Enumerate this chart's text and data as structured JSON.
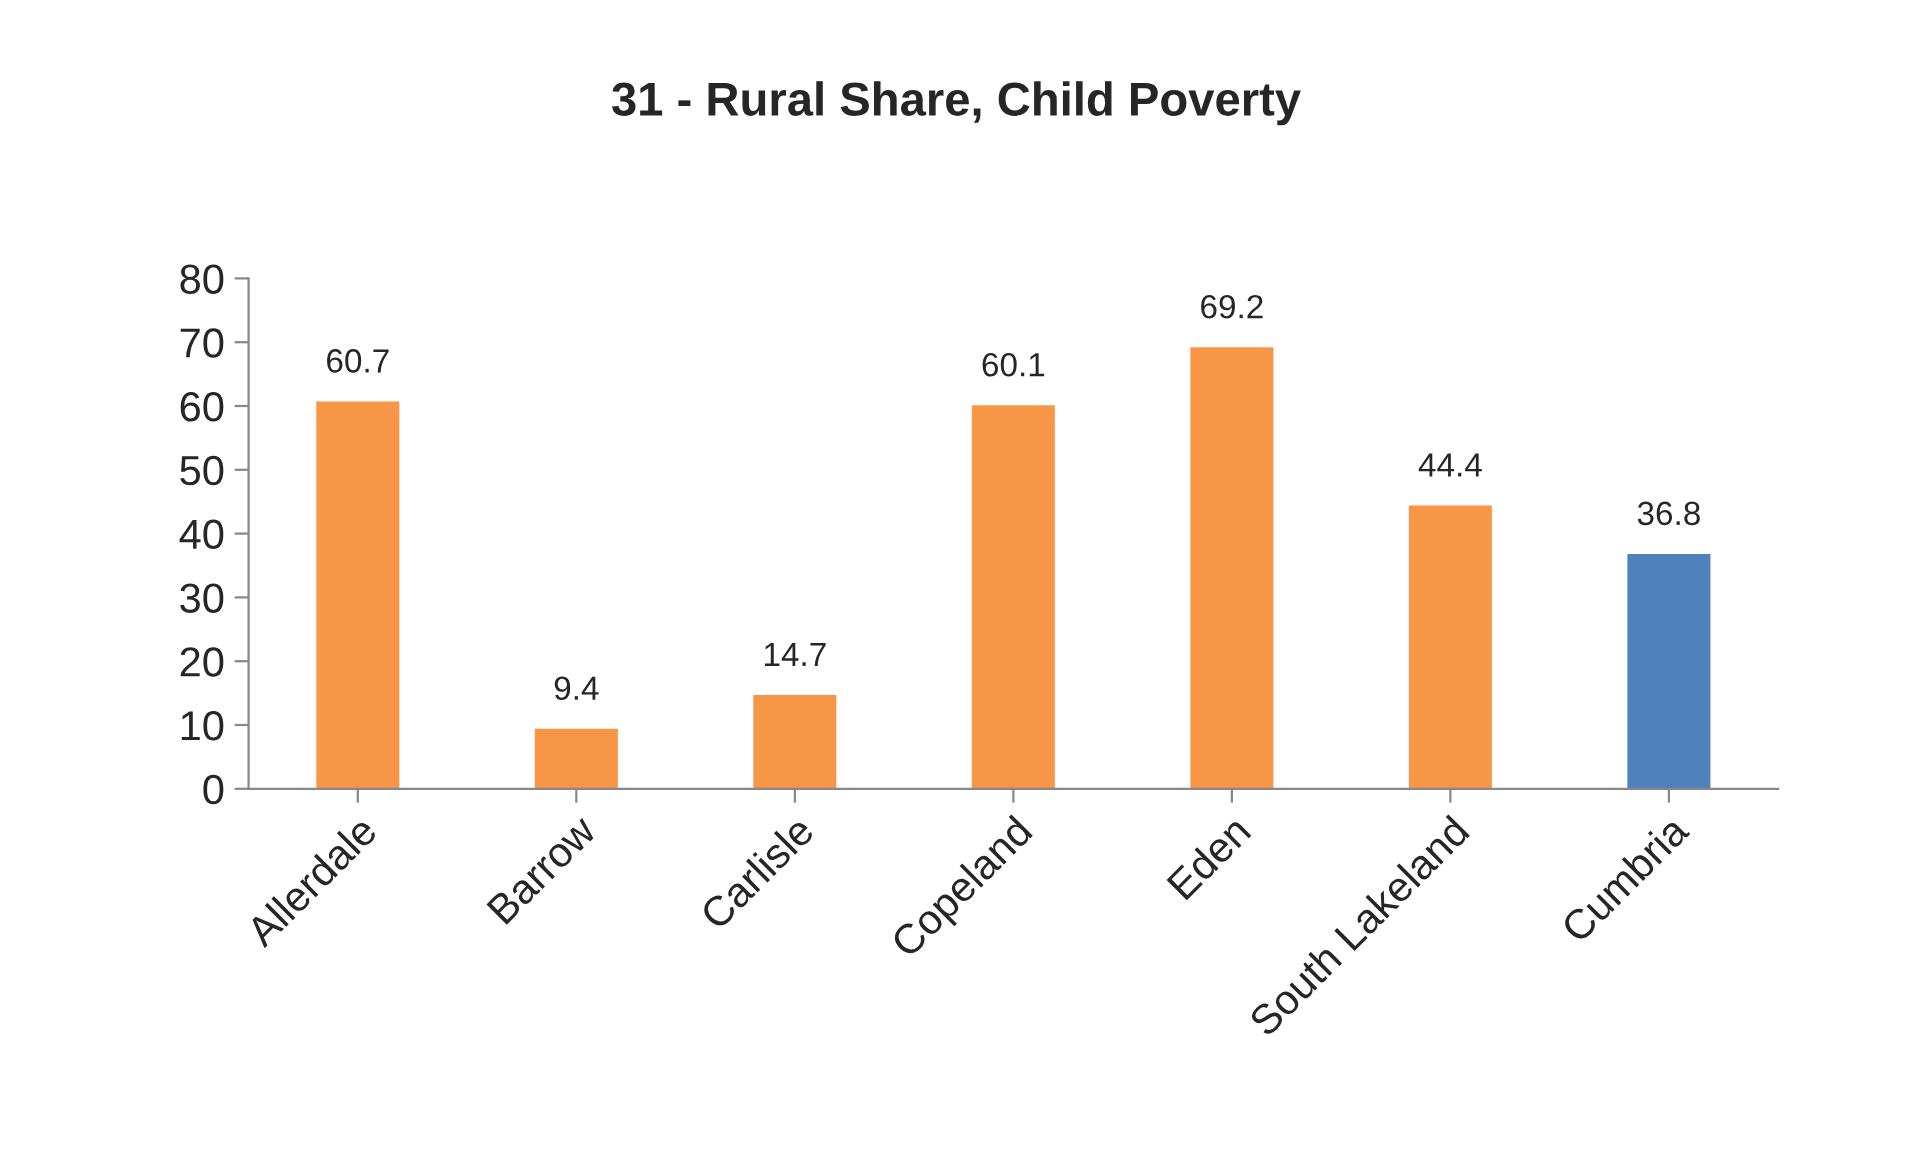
{
  "chart_data": {
    "type": "bar",
    "title": "31 - Rural Share, Child Poverty",
    "categories": [
      "Allerdale",
      "Barrow",
      "Carlisle",
      "Copeland",
      "Eden",
      "South Lakeland",
      "Cumbria"
    ],
    "values": [
      60.7,
      9.4,
      14.7,
      60.1,
      69.2,
      44.4,
      36.8
    ],
    "colors": [
      "#f79646",
      "#f79646",
      "#f79646",
      "#f79646",
      "#f79646",
      "#f79646",
      "#4f81bd"
    ],
    "ylim": [
      0,
      80
    ],
    "yticks": [
      0,
      10,
      20,
      30,
      40,
      50,
      60,
      70,
      80
    ],
    "data_labels": true,
    "grid": false,
    "legend": false
  }
}
